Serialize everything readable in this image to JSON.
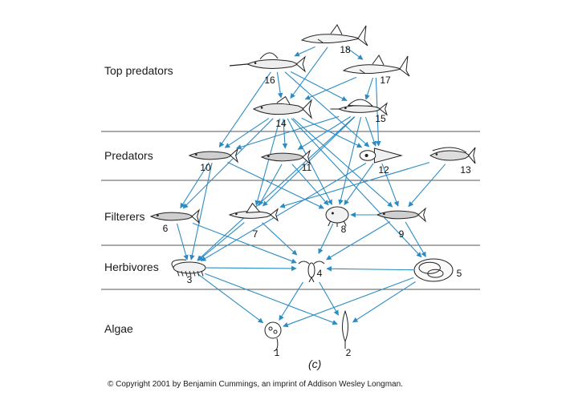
{
  "tiers": [
    {
      "id": "top",
      "label": "Top predators"
    },
    {
      "id": "pred",
      "label": "Predators"
    },
    {
      "id": "filt",
      "label": "Filterers"
    },
    {
      "id": "herb",
      "label": "Herbivores"
    },
    {
      "id": "alg",
      "label": "Algae"
    }
  ],
  "organisms": [
    {
      "num": "1",
      "kind": "alga-round"
    },
    {
      "num": "2",
      "kind": "alga-spindle"
    },
    {
      "num": "3",
      "kind": "crustacean"
    },
    {
      "num": "4",
      "kind": "copepod"
    },
    {
      "num": "5",
      "kind": "salp"
    },
    {
      "num": "6",
      "kind": "fish"
    },
    {
      "num": "7",
      "kind": "flying-fish"
    },
    {
      "num": "8",
      "kind": "amphipod"
    },
    {
      "num": "9",
      "kind": "fish"
    },
    {
      "num": "10",
      "kind": "fish"
    },
    {
      "num": "11",
      "kind": "fish"
    },
    {
      "num": "12",
      "kind": "squid"
    },
    {
      "num": "13",
      "kind": "dolphinfish"
    },
    {
      "num": "14",
      "kind": "tuna"
    },
    {
      "num": "15",
      "kind": "sailfish"
    },
    {
      "num": "16",
      "kind": "marlin"
    },
    {
      "num": "17",
      "kind": "shark"
    },
    {
      "num": "18",
      "kind": "shark"
    }
  ],
  "arrow_color": "#2b8cc4",
  "panel_letter": "(c)",
  "copyright": "© Copyright 2001 by Benjamin Cummings, an imprint of Addison Wesley Longman."
}
